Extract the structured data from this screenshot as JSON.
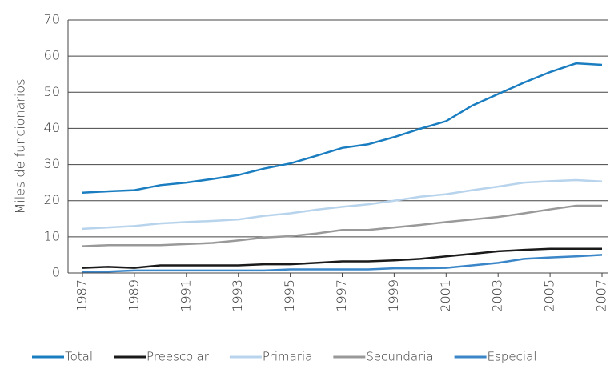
{
  "chart_data": {
    "type": "line",
    "ylabel": "Miles de funcionarios",
    "x": [
      1987,
      1988,
      1989,
      1990,
      1991,
      1992,
      1993,
      1994,
      1995,
      1996,
      1997,
      1998,
      1999,
      2000,
      2001,
      2002,
      2003,
      2004,
      2005,
      2006,
      2007
    ],
    "xlim": [
      1987,
      2007
    ],
    "xticks": [
      1987,
      1989,
      1991,
      1993,
      1995,
      1997,
      1999,
      2001,
      2003,
      2005,
      2007
    ],
    "ylim": [
      0,
      70
    ],
    "yticks": [
      0,
      10,
      20,
      30,
      40,
      50,
      60,
      70
    ],
    "grid": true,
    "legend": "bottom",
    "series": [
      {
        "name": "Total",
        "color": "#1a7dc0",
        "values": [
          22.2,
          22.6,
          22.9,
          24.3,
          25.0,
          26.0,
          27.1,
          28.9,
          30.3,
          32.4,
          34.6,
          35.6,
          37.6,
          39.9,
          42.0,
          46.3,
          49.5,
          52.7,
          55.6,
          58.0,
          57.6
        ]
      },
      {
        "name": "Preescolar",
        "color": "#1a1a1a",
        "values": [
          1.4,
          1.7,
          1.4,
          2.1,
          2.1,
          2.1,
          2.1,
          2.4,
          2.4,
          2.8,
          3.2,
          3.2,
          3.5,
          3.9,
          4.6,
          5.3,
          6.0,
          6.4,
          6.7,
          6.7,
          6.7
        ]
      },
      {
        "name": "Primaria",
        "color": "#b8d3ec",
        "values": [
          12.2,
          12.6,
          13.0,
          13.7,
          14.1,
          14.4,
          14.8,
          15.8,
          16.5,
          17.5,
          18.3,
          19.0,
          20.0,
          21.1,
          21.8,
          22.9,
          23.9,
          25.0,
          25.4,
          25.7,
          25.3
        ]
      },
      {
        "name": "Secundaria",
        "color": "#999999",
        "values": [
          7.4,
          7.7,
          7.7,
          7.7,
          8.0,
          8.3,
          9.0,
          9.8,
          10.2,
          10.9,
          11.9,
          11.9,
          12.6,
          13.3,
          14.1,
          14.8,
          15.5,
          16.5,
          17.6,
          18.6,
          18.6
        ]
      },
      {
        "name": "Especial",
        "color": "#3a86c8",
        "values": [
          0.4,
          0.4,
          0.7,
          0.7,
          0.7,
          0.7,
          0.7,
          0.7,
          1.0,
          1.0,
          1.0,
          1.0,
          1.3,
          1.3,
          1.4,
          2.1,
          2.8,
          3.9,
          4.3,
          4.6,
          5.0
        ]
      }
    ]
  }
}
